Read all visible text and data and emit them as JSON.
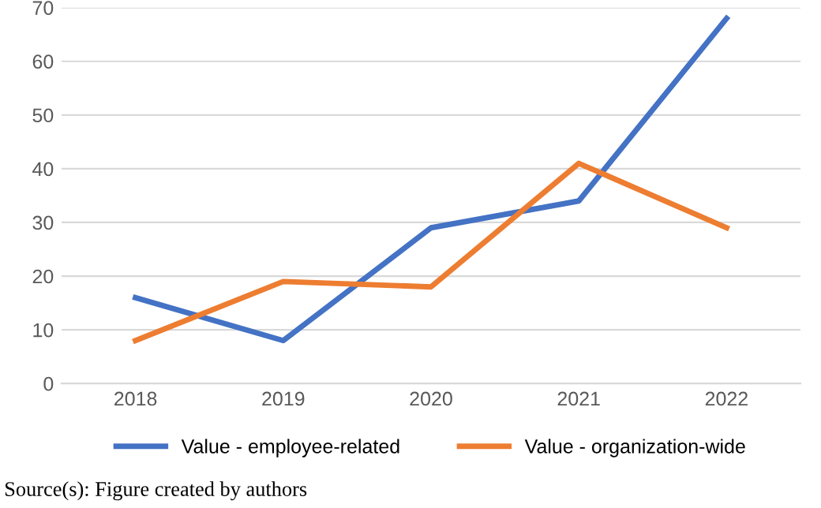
{
  "chart_data": {
    "type": "line",
    "categories": [
      "2018",
      "2019",
      "2020",
      "2021",
      "2022"
    ],
    "series": [
      {
        "name": "Value - employee-related",
        "color": "#4472c4",
        "values": [
          16,
          8,
          29,
          34,
          68
        ]
      },
      {
        "name": "Value - organization-wide",
        "color": "#ed7d31",
        "values": [
          8,
          19,
          18,
          41,
          29
        ]
      }
    ],
    "ylim": [
      0,
      70
    ],
    "yticks": [
      0,
      10,
      20,
      30,
      40,
      50,
      60,
      70
    ],
    "grid": "y",
    "legend": "bottom",
    "marker": "none",
    "line_style": "solid",
    "annotations": [
      "Source(s): Figure created by authors"
    ]
  }
}
